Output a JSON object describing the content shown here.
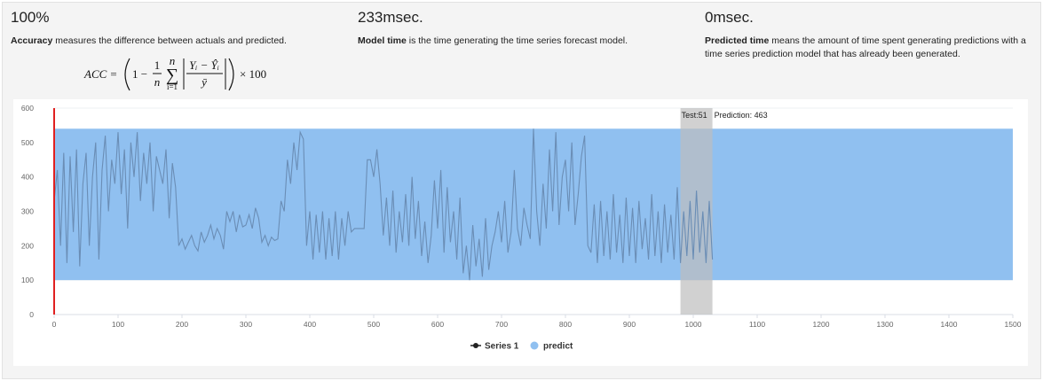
{
  "metrics": [
    {
      "value": "100%",
      "term": "Accuracy",
      "description": "measures the difference between actuals and predicted."
    },
    {
      "value": "233msec.",
      "term": "Model time",
      "description": "is the time generating the time series forecast model."
    },
    {
      "value": "0msec.",
      "term": "Predicted time",
      "description": "means the amount of time spent generating predictions with a time series prediction model that has already been generated."
    }
  ],
  "formula": {
    "lhs": "ACC =",
    "one_minus": "1 −",
    "frac_num": "1",
    "frac_den": "n",
    "sum_symbol": "∑",
    "sum_top": "n",
    "sum_bottom": "i=1",
    "inner_num": "Yᵢ − Ŷᵢ",
    "inner_den": "ȳ",
    "tail": "× 100"
  },
  "chart_data": {
    "type": "line",
    "xlim": [
      0,
      1500
    ],
    "ylim": [
      0,
      600
    ],
    "xticks": [
      0,
      100,
      200,
      300,
      400,
      500,
      600,
      700,
      800,
      900,
      1000,
      1100,
      1200,
      1300,
      1400,
      1500
    ],
    "yticks": [
      0,
      100,
      200,
      300,
      400,
      500,
      600
    ],
    "grid": true,
    "vline": 0,
    "vline_color": "#e02020",
    "test_band": [
      980,
      1030
    ],
    "annotations": [
      "Test:51",
      "Prediction: 463"
    ],
    "series": [
      {
        "name": "Series 1",
        "color": "#6a8db5",
        "x": [
          0,
          5,
          10,
          15,
          20,
          25,
          30,
          35,
          40,
          45,
          50,
          55,
          60,
          65,
          70,
          75,
          80,
          85,
          90,
          95,
          100,
          105,
          110,
          115,
          120,
          125,
          130,
          135,
          140,
          145,
          150,
          155,
          160,
          165,
          170,
          175,
          180,
          185,
          190,
          195,
          200,
          205,
          210,
          215,
          220,
          225,
          230,
          235,
          240,
          245,
          250,
          255,
          260,
          265,
          270,
          275,
          280,
          285,
          290,
          295,
          300,
          305,
          310,
          315,
          320,
          325,
          330,
          335,
          340,
          345,
          350,
          355,
          360,
          365,
          370,
          375,
          380,
          385,
          390,
          395,
          400,
          405,
          410,
          415,
          420,
          425,
          430,
          435,
          440,
          445,
          450,
          455,
          460,
          465,
          470,
          475,
          480,
          485,
          490,
          495,
          500,
          505,
          510,
          515,
          520,
          525,
          530,
          535,
          540,
          545,
          550,
          555,
          560,
          565,
          570,
          575,
          580,
          585,
          590,
          595,
          600,
          605,
          610,
          615,
          620,
          625,
          630,
          635,
          640,
          645,
          650,
          655,
          660,
          665,
          670,
          675,
          680,
          685,
          690,
          695,
          700,
          705,
          710,
          715,
          720,
          725,
          730,
          735,
          740,
          745,
          750,
          755,
          760,
          765,
          770,
          775,
          780,
          785,
          790,
          795,
          800,
          805,
          810,
          815,
          820,
          825,
          830,
          835,
          840,
          845,
          850,
          855,
          860,
          865,
          870,
          875,
          880,
          885,
          890,
          895,
          900,
          905,
          910,
          915,
          920,
          925,
          930,
          935,
          940,
          945,
          950,
          955,
          960,
          965,
          970,
          975,
          980,
          985,
          990,
          995,
          1000,
          1005,
          1010,
          1015,
          1020,
          1025,
          1030
        ],
        "values": [
          330,
          420,
          200,
          470,
          150,
          460,
          240,
          480,
          140,
          380,
          470,
          200,
          400,
          500,
          160,
          420,
          520,
          300,
          450,
          380,
          530,
          350,
          480,
          250,
          500,
          400,
          530,
          330,
          470,
          380,
          500,
          300,
          460,
          420,
          380,
          480,
          280,
          440,
          370,
          200,
          220,
          190,
          210,
          230,
          200,
          185,
          240,
          210,
          230,
          260,
          220,
          250,
          230,
          190,
          300,
          270,
          300,
          240,
          290,
          255,
          260,
          290,
          250,
          310,
          280,
          210,
          230,
          200,
          225,
          215,
          220,
          330,
          300,
          450,
          380,
          500,
          420,
          530,
          510,
          200,
          300,
          160,
          290,
          180,
          300,
          160,
          280,
          170,
          300,
          160,
          280,
          200,
          300,
          240,
          250,
          250,
          250,
          250,
          450,
          450,
          400,
          480,
          380,
          230,
          340,
          200,
          360,
          180,
          300,
          210,
          350,
          200,
          400,
          220,
          330,
          170,
          270,
          150,
          230,
          390,
          250,
          420,
          180,
          370,
          210,
          300,
          160,
          340,
          120,
          200,
          100,
          260,
          140,
          220,
          110,
          280,
          130,
          200,
          240,
          300,
          210,
          330,
          180,
          240,
          420,
          250,
          200,
          310,
          260,
          220,
          540,
          300,
          200,
          380,
          250,
          480,
          300,
          530,
          260,
          400,
          450,
          300,
          500,
          260,
          350,
          460,
          520,
          200,
          180,
          320,
          150,
          330,
          170,
          300,
          160,
          350,
          180,
          290,
          150,
          340,
          170,
          310,
          150,
          330,
          190,
          280,
          160,
          350,
          170,
          300,
          150,
          320,
          180,
          290,
          160,
          370,
          150,
          300,
          170,
          330,
          160,
          360,
          180,
          300,
          150,
          330,
          160
        ]
      },
      {
        "name": "predict",
        "color": "#90c0f0",
        "x": [
          0,
          1500
        ],
        "lower": [
          100,
          100
        ],
        "upper": [
          540,
          540
        ]
      }
    ]
  }
}
